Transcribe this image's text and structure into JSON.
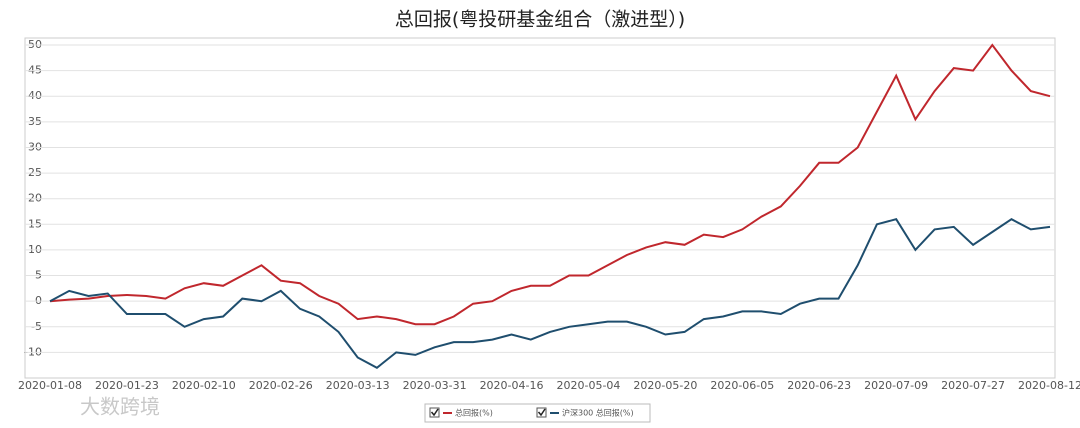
{
  "chart_data": {
    "type": "line",
    "title": "总回报(粤投研基金组合（激进型）)",
    "watermark": "大数跨境",
    "categories": [
      "2020-01-08",
      null,
      null,
      null,
      "2020-01-23",
      null,
      null,
      null,
      "2020-02-10",
      null,
      null,
      null,
      "2020-02-26",
      null,
      null,
      null,
      "2020-03-13",
      null,
      null,
      null,
      "2020-03-31",
      null,
      null,
      null,
      "2020-04-16",
      null,
      null,
      null,
      "2020-05-04",
      null,
      null,
      null,
      "2020-05-20",
      null,
      null,
      null,
      "2020-06-05",
      null,
      null,
      null,
      "2020-06-23",
      null,
      null,
      null,
      "2020-07-09",
      null,
      null,
      null,
      "2020-07-27",
      null,
      null,
      null,
      "2020-08-12"
    ],
    "series": [
      {
        "name": "总回报(%)",
        "color": "#c0272d",
        "values": [
          0,
          0.3,
          0.5,
          1,
          1.2,
          1,
          0.5,
          2.5,
          3.5,
          3,
          5,
          7,
          4,
          3.5,
          1,
          -0.5,
          -3.5,
          -3,
          -3.5,
          -4.5,
          -4.5,
          -3,
          -0.5,
          0,
          2,
          3,
          3,
          5,
          5,
          7,
          9,
          10.5,
          11.5,
          11,
          13,
          12.5,
          14,
          16.5,
          18.5,
          22.5,
          27,
          27,
          30,
          37,
          44,
          35.5,
          41,
          45.5,
          45,
          50,
          45,
          41,
          40
        ]
      },
      {
        "name": "沪深300 总回报(%)",
        "color": "#1f4e6e",
        "values": [
          0,
          2,
          1,
          1.5,
          -2.5,
          -2.5,
          -2.5,
          -5,
          -3.5,
          -3,
          0.5,
          0,
          2,
          -1.5,
          -3,
          -6,
          -11,
          -13,
          -10,
          -10.5,
          -9,
          -8,
          -8,
          -7.5,
          -6.5,
          -7.5,
          -6,
          -5,
          -4.5,
          -4,
          -4,
          -5,
          -6.5,
          -6,
          -3.5,
          -3,
          -2,
          -2,
          -2.5,
          -0.5,
          0.5,
          0.5,
          7,
          15,
          16,
          10,
          14,
          14.5,
          11,
          13.5,
          16,
          14,
          14.5
        ]
      }
    ],
    "ylim": [
      -15,
      50
    ],
    "yticks": [
      -10,
      -5,
      0,
      5,
      10,
      15,
      20,
      25,
      30,
      35,
      40,
      45,
      50
    ],
    "grid": true,
    "legend": "bottom"
  }
}
